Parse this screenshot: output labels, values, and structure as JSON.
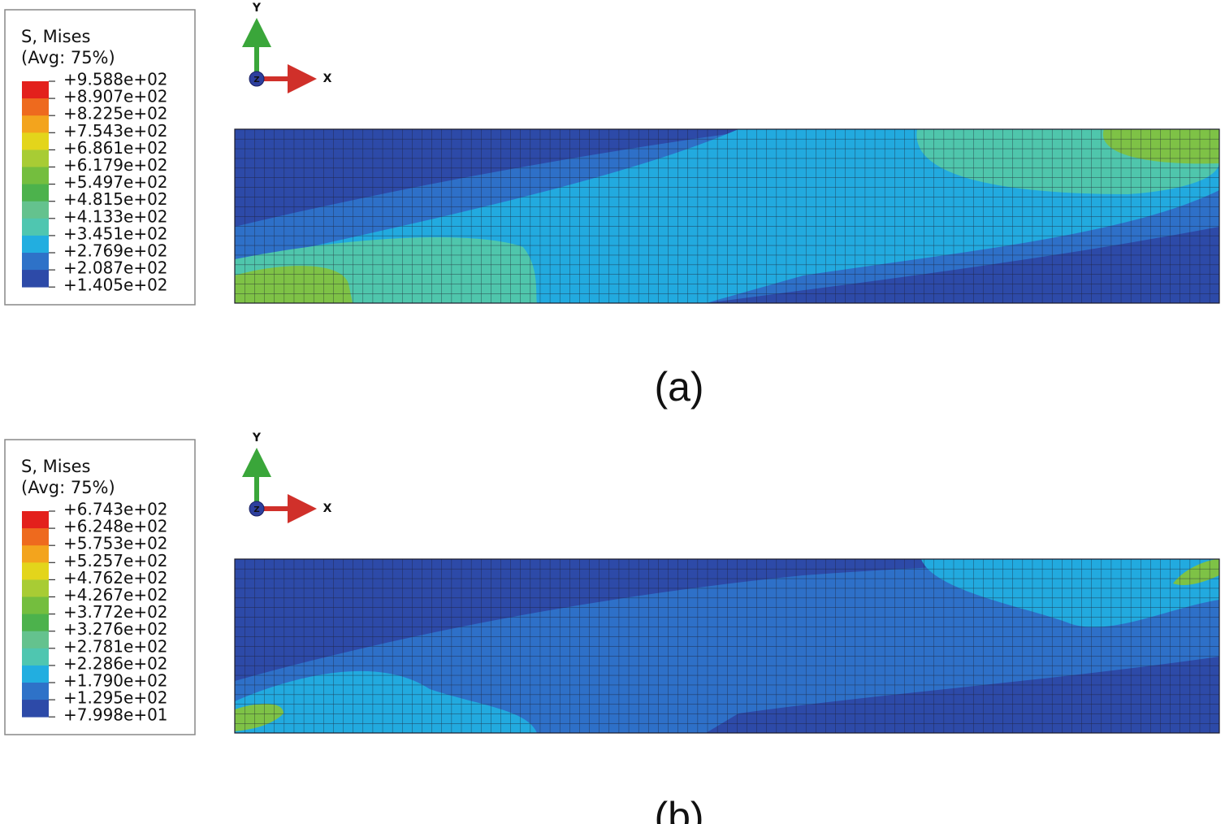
{
  "panels": [
    {
      "legend": {
        "title": "S, Mises",
        "subtitle": "(Avg: 75%)",
        "labels": [
          "+9.588e+02",
          "+8.907e+02",
          "+8.225e+02",
          "+7.543e+02",
          "+6.861e+02",
          "+6.179e+02",
          "+5.497e+02",
          "+4.815e+02",
          "+4.133e+02",
          "+3.451e+02",
          "+2.769e+02",
          "+2.087e+02",
          "+1.405e+02"
        ]
      },
      "triad": {
        "y": "Y",
        "x": "X",
        "z": "Z"
      },
      "caption": "(a)"
    },
    {
      "legend": {
        "title": "S, Mises",
        "subtitle": "(Avg: 75%)",
        "labels": [
          "+6.743e+02",
          "+6.248e+02",
          "+5.753e+02",
          "+5.257e+02",
          "+4.762e+02",
          "+4.267e+02",
          "+3.772e+02",
          "+3.276e+02",
          "+2.781e+02",
          "+2.286e+02",
          "+1.790e+02",
          "+1.295e+02",
          "+7.998e+01"
        ]
      },
      "triad": {
        "y": "Y",
        "x": "X",
        "z": "Z"
      },
      "caption": "(b)"
    }
  ]
}
